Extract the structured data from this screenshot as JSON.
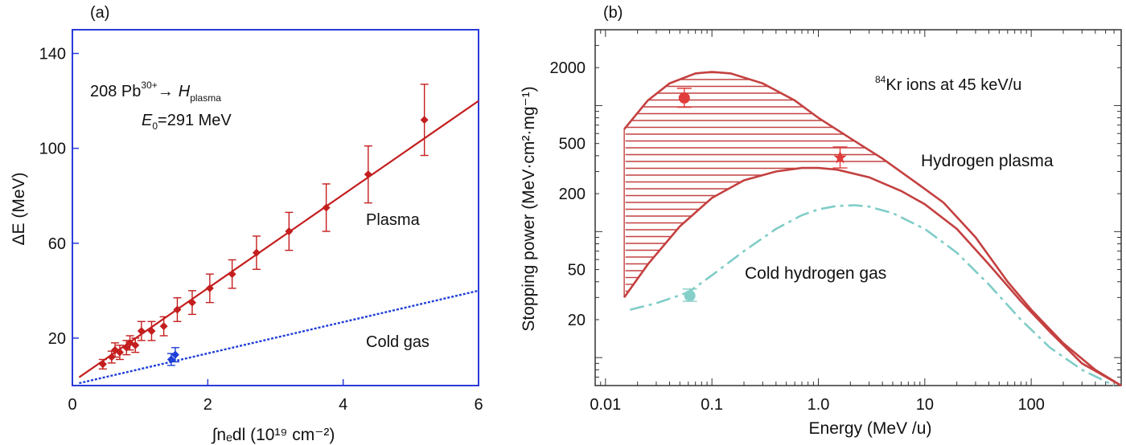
{
  "chart_data": [
    {
      "panel_label": "(a)",
      "type": "scatter",
      "xlabel": "∫nₑdl (10¹⁹ cm⁻²)",
      "ylabel": "ΔE (MeV)",
      "xlim": [
        0,
        6
      ],
      "ylim": [
        0,
        150
      ],
      "x_ticks": [
        "0",
        "2",
        "4",
        "6"
      ],
      "x_tick_values": [
        0,
        2,
        4,
        6
      ],
      "y_ticks": [
        "20",
        "60",
        "100",
        "140"
      ],
      "y_tick_values": [
        20,
        60,
        100,
        140
      ],
      "annotation": {
        "reaction_pre": "208 Pb",
        "charge": "30+",
        "arrow": "→",
        "target": "H",
        "target_sub": "plasma",
        "energy_var": "E",
        "energy_sub": "0",
        "energy_val": "=291 MeV"
      },
      "series": [
        {
          "name": "Plasma",
          "color": "#c41e1e",
          "points": [
            {
              "x": 0.45,
              "y": 9,
              "err": 2
            },
            {
              "x": 0.58,
              "y": 12,
              "err": 2.5
            },
            {
              "x": 0.63,
              "y": 15,
              "err": 3
            },
            {
              "x": 0.7,
              "y": 14,
              "err": 3
            },
            {
              "x": 0.8,
              "y": 16,
              "err": 3
            },
            {
              "x": 0.85,
              "y": 18,
              "err": 3
            },
            {
              "x": 0.93,
              "y": 17,
              "err": 3
            },
            {
              "x": 1.02,
              "y": 23,
              "err": 4
            },
            {
              "x": 1.17,
              "y": 23,
              "err": 4
            },
            {
              "x": 1.35,
              "y": 25,
              "err": 4
            },
            {
              "x": 1.55,
              "y": 32,
              "err": 5
            },
            {
              "x": 1.77,
              "y": 35,
              "err": 5
            },
            {
              "x": 2.03,
              "y": 41,
              "err": 6
            },
            {
              "x": 2.36,
              "y": 47,
              "err": 6
            },
            {
              "x": 2.72,
              "y": 56,
              "err": 7
            },
            {
              "x": 3.2,
              "y": 65,
              "err": 8
            },
            {
              "x": 3.75,
              "y": 75,
              "err": 10
            },
            {
              "x": 4.37,
              "y": 89,
              "err": 12
            },
            {
              "x": 5.2,
              "y": 112,
              "err": 15
            }
          ],
          "fit": [
            [
              0.1,
              3.5
            ],
            [
              6,
              120
            ]
          ]
        },
        {
          "name": "Cold gas",
          "color": "#1f3fd6",
          "points": [
            {
              "x": 1.46,
              "y": 11,
              "err": 2.5
            },
            {
              "x": 1.52,
              "y": 13,
              "err": 3
            }
          ],
          "fit": [
            [
              0.1,
              1
            ],
            [
              6,
              40
            ]
          ]
        }
      ],
      "labels": {
        "plasma": "Plasma",
        "cold": "Cold gas"
      }
    },
    {
      "panel_label": "(b)",
      "type": "line",
      "xlabel": "Energy (MeV /u)",
      "ylabel": "Stopping power (MeV·cm²·mg⁻¹)",
      "x_scale": "log",
      "y_scale": "log",
      "xlim": [
        0.008,
        700
      ],
      "ylim": [
        6,
        4000
      ],
      "x_ticks": [
        "0.01",
        "0.1",
        "1.0",
        "10",
        "100"
      ],
      "x_tick_values": [
        0.01,
        0.1,
        1,
        10,
        100
      ],
      "y_ticks": [
        "20",
        "50",
        "200",
        "500",
        "2000"
      ],
      "y_tick_values": [
        20,
        50,
        200,
        500,
        2000
      ],
      "annotation": {
        "iso": "84",
        "text": "Kr ions at 45 keV/u"
      },
      "series": [
        {
          "name": "Hydrogen plasma",
          "color": "#c44040",
          "upper": [
            [
              0.015,
              650
            ],
            [
              0.025,
              1100
            ],
            [
              0.04,
              1500
            ],
            [
              0.07,
              1800
            ],
            [
              0.1,
              1850
            ],
            [
              0.15,
              1800
            ],
            [
              0.3,
              1500
            ],
            [
              0.6,
              1100
            ],
            [
              1,
              800
            ],
            [
              2,
              550
            ],
            [
              4,
              380
            ],
            [
              8,
              250
            ],
            [
              15,
              170
            ],
            [
              30,
              90
            ],
            [
              60,
              40
            ],
            [
              100,
              24
            ],
            [
              200,
              13
            ],
            [
              400,
              8
            ],
            [
              700,
              6
            ]
          ],
          "lower": [
            [
              0.015,
              30
            ],
            [
              0.025,
              55
            ],
            [
              0.05,
              110
            ],
            [
              0.1,
              185
            ],
            [
              0.2,
              255
            ],
            [
              0.4,
              300
            ],
            [
              0.7,
              320
            ],
            [
              1,
              320
            ],
            [
              1.5,
              310
            ],
            [
              3,
              270
            ],
            [
              6,
              210
            ],
            [
              10,
              165
            ],
            [
              20,
              105
            ],
            [
              40,
              55
            ],
            [
              80,
              28
            ],
            [
              150,
              16
            ],
            [
              300,
              9
            ],
            [
              700,
              6
            ]
          ],
          "points": [
            {
              "x": 0.055,
              "y": 1150,
              "err_lo": 180,
              "err_hi": 220
            },
            {
              "x": 1.6,
              "y": 390,
              "err_lo": 70,
              "err_hi": 80
            }
          ]
        },
        {
          "name": "Cold hydrogen gas",
          "color": "#7fcdc8",
          "curve": [
            [
              0.017,
              24
            ],
            [
              0.03,
              27
            ],
            [
              0.06,
              33
            ],
            [
              0.1,
              45
            ],
            [
              0.2,
              70
            ],
            [
              0.4,
              105
            ],
            [
              0.7,
              135
            ],
            [
              1,
              150
            ],
            [
              1.5,
              160
            ],
            [
              2.2,
              162
            ],
            [
              3,
              158
            ],
            [
              5,
              140
            ],
            [
              10,
              105
            ],
            [
              20,
              68
            ],
            [
              40,
              38
            ],
            [
              80,
              20
            ],
            [
              150,
              12
            ],
            [
              300,
              8
            ],
            [
              600,
              6
            ]
          ],
          "points": [
            {
              "x": 0.062,
              "y": 31,
              "err_lo": 3,
              "err_hi": 4
            }
          ]
        }
      ],
      "labels": {
        "plasma": "Hydrogen plasma",
        "cold": "Cold hydrogen gas"
      }
    }
  ]
}
